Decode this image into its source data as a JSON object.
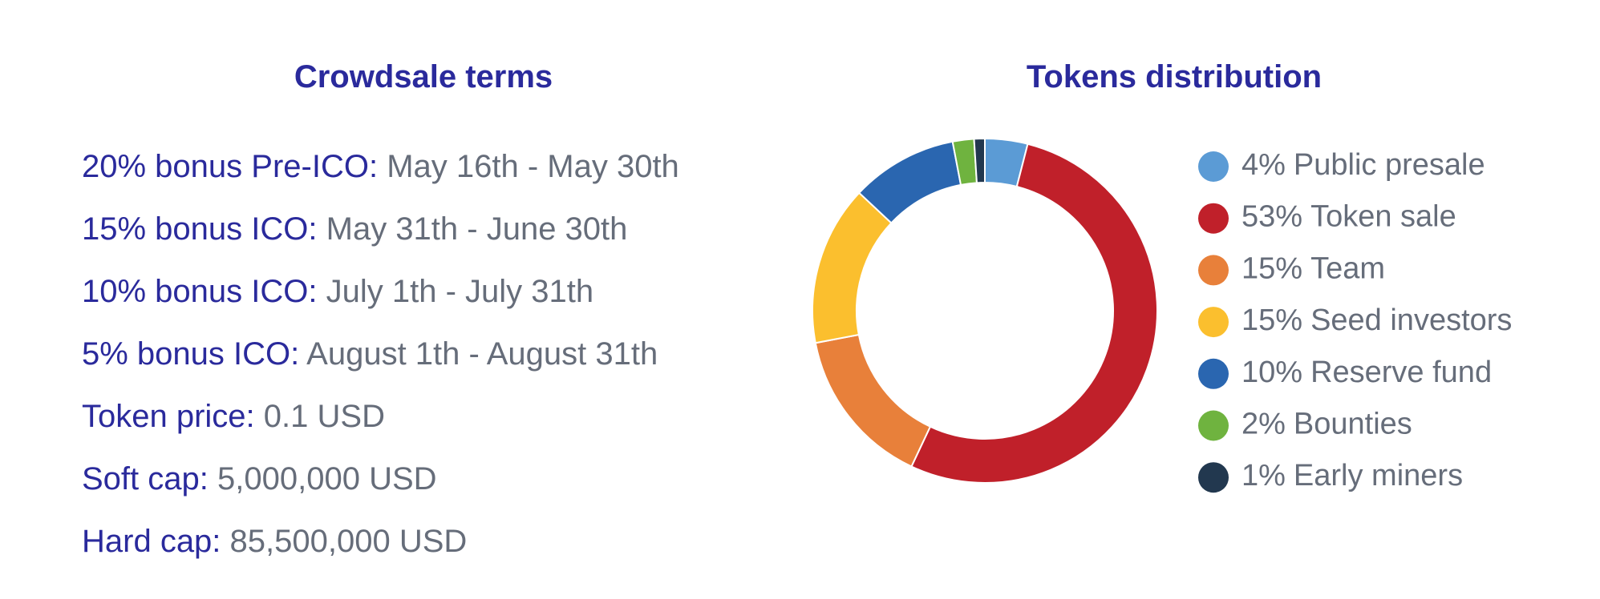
{
  "crowdsale": {
    "title": "Crowdsale terms",
    "terms": [
      {
        "label": "20% bonus Pre-ICO:",
        "value": "May 16th - May 30th"
      },
      {
        "label": "15% bonus ICO:",
        "value": "May 31th - June 30th"
      },
      {
        "label": "10% bonus ICO:",
        "value": "July 1th - July 31th"
      },
      {
        "label": "5% bonus ICO:",
        "value": "August 1th - August 31th"
      },
      {
        "label": "Token price:",
        "value": "0.1 USD"
      },
      {
        "label": "Soft cap:",
        "value": "5,000,000 USD"
      },
      {
        "label": "Hard cap:",
        "value": "85,500,000 USD"
      }
    ]
  },
  "chart_data": {
    "type": "pie",
    "title": "Tokens distribution",
    "donut": true,
    "categories": [
      "Public presale",
      "Token sale",
      "Team",
      "Seed investors",
      "Reserve fund",
      "Bounties",
      "Early miners"
    ],
    "values": [
      4,
      53,
      15,
      15,
      10,
      2,
      1
    ],
    "value_labels": [
      "4%",
      "53%",
      "15%",
      "15%",
      "10%",
      "2%",
      "1%"
    ],
    "colors": [
      "#5b9bd5",
      "#c0202a",
      "#e8803a",
      "#fbbf2e",
      "#2a66b0",
      "#6fb33f",
      "#22384f"
    ],
    "legend": "right"
  }
}
